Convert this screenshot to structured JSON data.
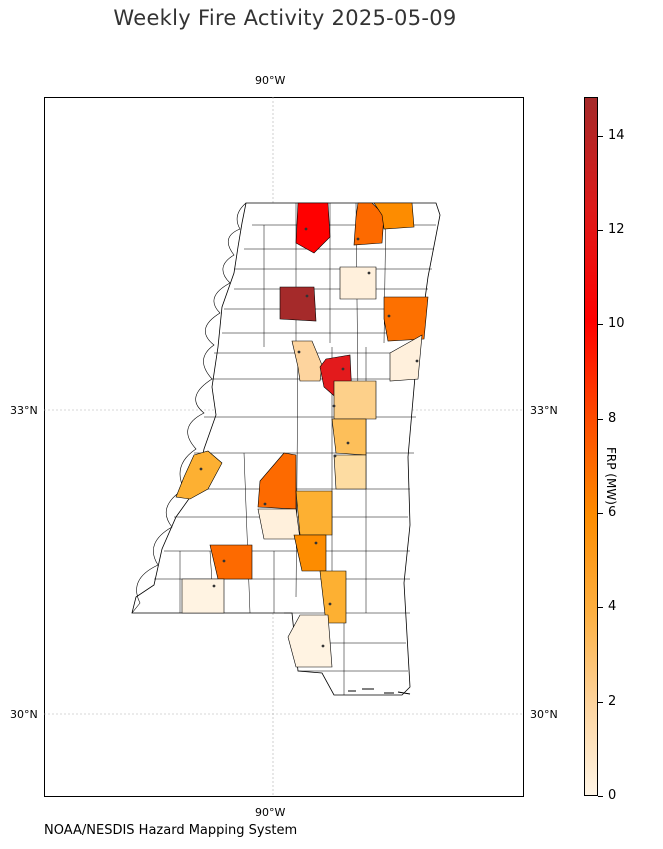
{
  "title": "Weekly Fire Activity 2025-05-09",
  "credit": "NOAA/NESDIS Hazard Mapping System",
  "axes": {
    "lon_top": "90°W",
    "lon_bottom": "90°W",
    "lat_33_left": "33°N",
    "lat_33_right": "33°N",
    "lat_30_left": "30°N",
    "lat_30_right": "30°N"
  },
  "colorbar": {
    "label": "FRP (MW)",
    "ticks": [
      "0",
      "2",
      "4",
      "6",
      "8",
      "10",
      "12",
      "14"
    ],
    "colors": [
      "#fff5e6",
      "#fdd49e",
      "#fdb042",
      "#fd8c00",
      "#fd4b00",
      "#ff0000",
      "#dd1a1a",
      "#a52a2a"
    ]
  }
}
